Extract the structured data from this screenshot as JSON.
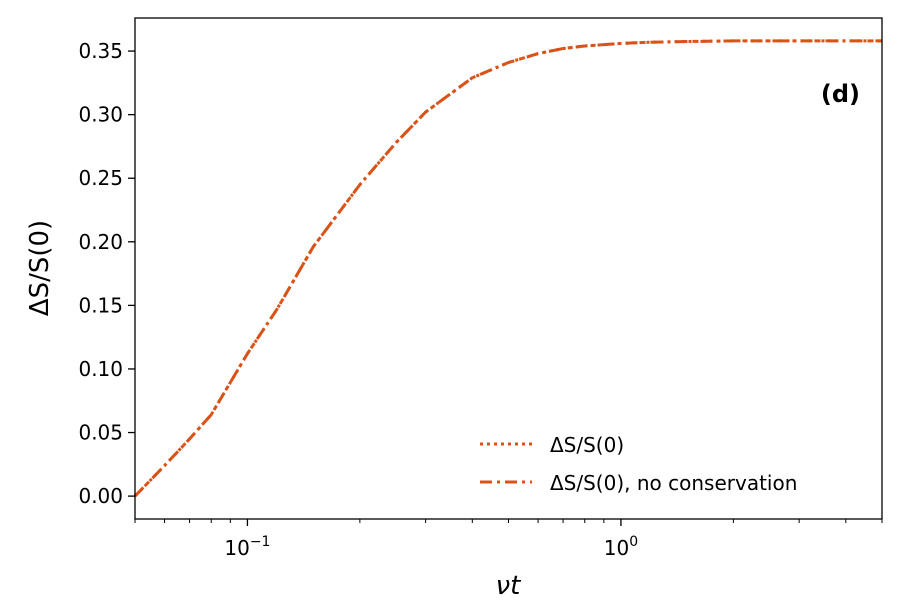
{
  "chart_data": {
    "type": "line",
    "panel_label": "(d)",
    "xlabel": "νt",
    "ylabel": "ΔS/S(0)",
    "xscale": "log",
    "xlim": [
      0.05,
      5.0
    ],
    "ylim": [
      -0.018,
      0.376
    ],
    "x_ticks": [
      {
        "value": 0.1,
        "base": "10",
        "exp": "−1"
      },
      {
        "value": 1.0,
        "base": "10",
        "exp": "0"
      }
    ],
    "y_ticks": [
      0.0,
      0.05,
      0.1,
      0.15,
      0.2,
      0.25,
      0.3,
      0.35
    ],
    "y_tick_labels": [
      "0.00",
      "0.05",
      "0.10",
      "0.15",
      "0.20",
      "0.25",
      "0.30",
      "0.35"
    ],
    "grid": false,
    "legend_position": "lower-right",
    "series": [
      {
        "name": "ΔS/S(0)",
        "legend_main": "ΔS/S(0)",
        "legend_suffix": "",
        "color": "#d95319",
        "style": "dotted",
        "x": [
          0.05,
          0.06,
          0.07,
          0.08,
          0.1,
          0.12,
          0.15,
          0.2,
          0.25,
          0.3,
          0.4,
          0.5,
          0.6,
          0.7,
          0.8,
          1.0,
          1.2,
          1.5,
          2.0,
          3.0,
          4.0,
          5.0
        ],
        "y": [
          0.0,
          0.024,
          0.045,
          0.064,
          0.112,
          0.147,
          0.196,
          0.245,
          0.278,
          0.302,
          0.329,
          0.341,
          0.348,
          0.352,
          0.354,
          0.356,
          0.357,
          0.3575,
          0.358,
          0.358,
          0.358,
          0.358
        ]
      },
      {
        "name": "ΔS/S(0), no conservation",
        "legend_main": "ΔS/S(0)",
        "legend_suffix": ", no conservation",
        "color": "#d95319",
        "style": "dashdot",
        "x": [
          0.05,
          0.06,
          0.07,
          0.08,
          0.1,
          0.12,
          0.15,
          0.2,
          0.25,
          0.3,
          0.4,
          0.5,
          0.6,
          0.7,
          0.8,
          1.0,
          1.2,
          1.5,
          2.0,
          3.0,
          4.0,
          5.0
        ],
        "y": [
          0.0,
          0.024,
          0.045,
          0.064,
          0.112,
          0.147,
          0.196,
          0.245,
          0.278,
          0.302,
          0.329,
          0.341,
          0.348,
          0.352,
          0.354,
          0.356,
          0.357,
          0.3575,
          0.358,
          0.358,
          0.358,
          0.358
        ]
      }
    ]
  }
}
